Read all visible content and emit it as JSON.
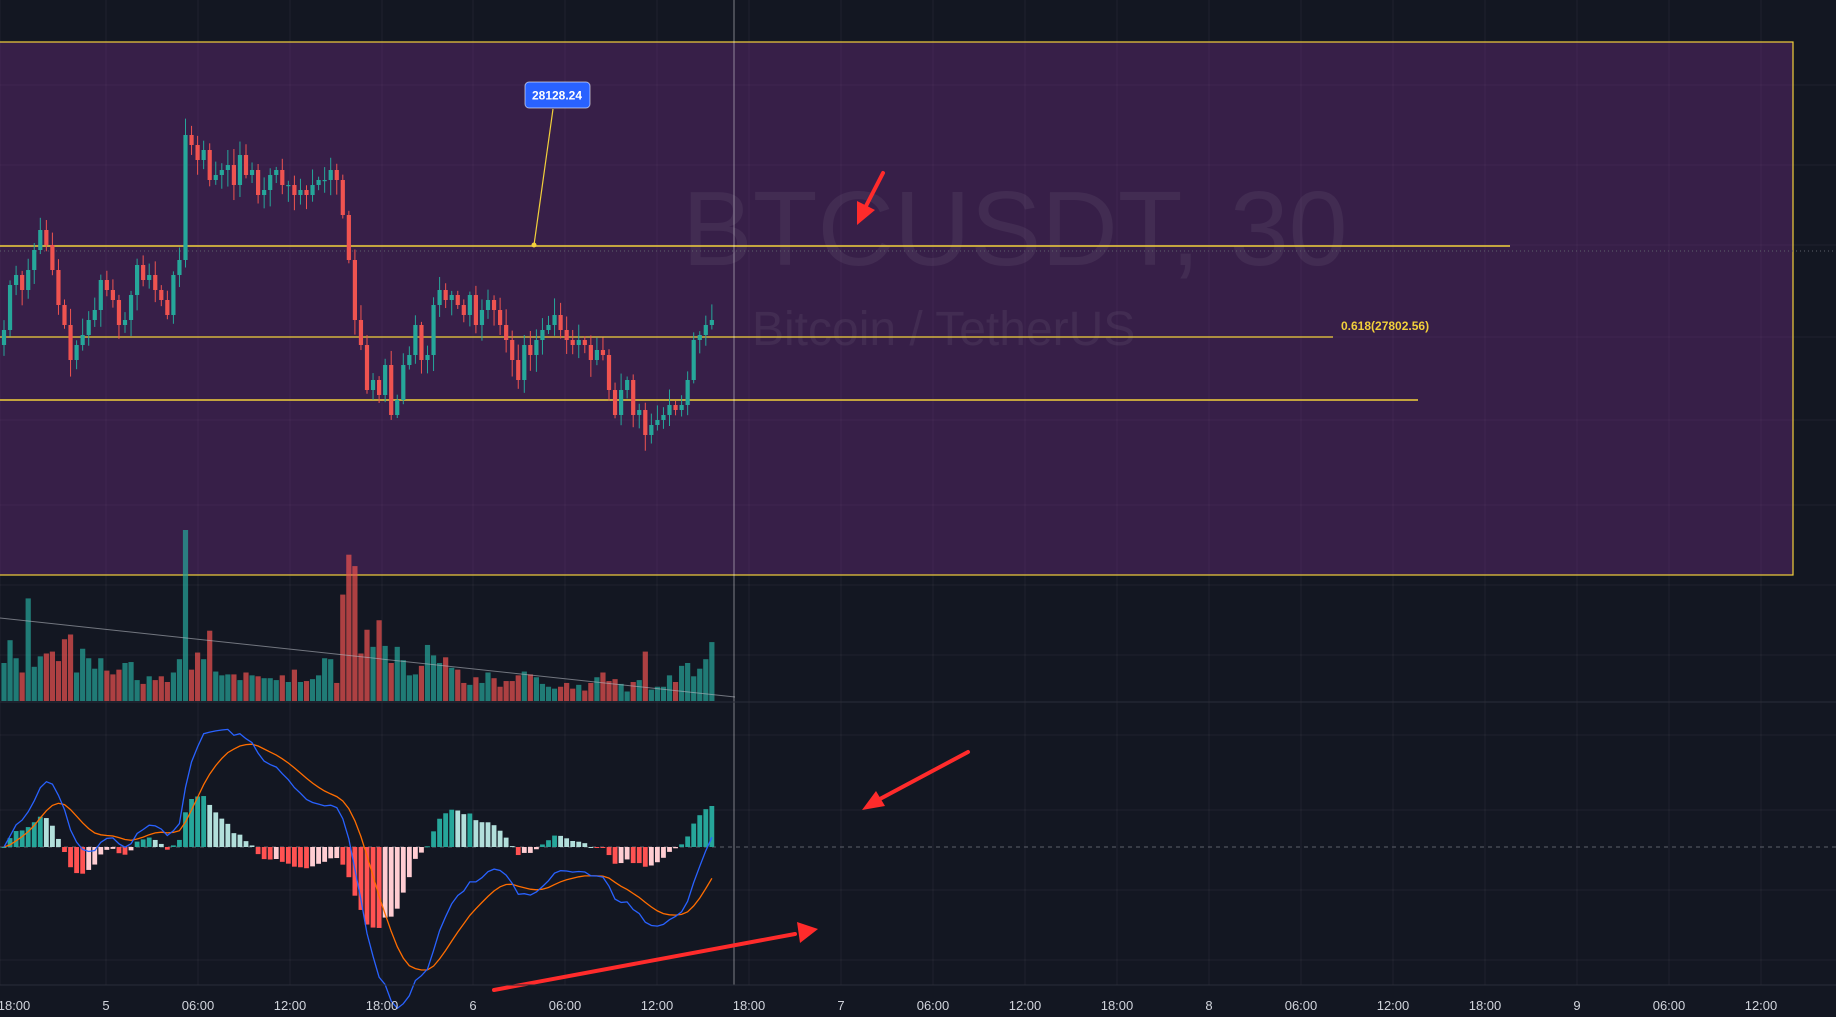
{
  "chart": {
    "symbol_watermark": "BTCUSDT, 30",
    "symbol_description": "Bitcoin / TetherUS",
    "callout_price": "28128.24",
    "fib_label": "0.618(27802.56)"
  },
  "colors": {
    "background": "#131722",
    "up": "#26a69a",
    "down": "#ef5350",
    "zone_fill": "#7b2d8e",
    "zone_border": "#f2d03b",
    "callout_bg": "#2962ff",
    "macd_line": "#2962ff",
    "signal_line": "#ff6d00",
    "hist_up_strong": "#26a69a",
    "hist_up_weak": "#b2dfdb",
    "hist_down_strong": "#ff5252",
    "hist_down_weak": "#ffcdd2",
    "arrow": "#ff2b2b"
  },
  "chart_data": {
    "type": "candlestick",
    "interval_minutes": 30,
    "x_tick_labels": [
      "18:00",
      "5",
      "06:00",
      "12:00",
      "18:00",
      "6",
      "06:00",
      "12:00",
      "18:00",
      "7",
      "06:00",
      "12:00",
      "18:00",
      "8",
      "06:00",
      "12:00",
      "18:00",
      "9",
      "06:00",
      "12:00"
    ],
    "price_axis_range": [
      27300,
      28700
    ],
    "candles_close": [
      28080,
      28170,
      28190,
      28160,
      28200,
      28240,
      28280,
      28250,
      28200,
      28130,
      28090,
      28020,
      28050,
      28070,
      28100,
      28120,
      28180,
      28160,
      28140,
      28090,
      28100,
      28150,
      28210,
      28180,
      28190,
      28160,
      28140,
      28110,
      28190,
      28220,
      28470,
      28450,
      28420,
      28440,
      28380,
      28390,
      28400,
      28410,
      28370,
      28430,
      28390,
      28400,
      28350,
      28360,
      28390,
      28400,
      28370,
      28370,
      28350,
      28360,
      28350,
      28370,
      28380,
      28380,
      28400,
      28380,
      28310,
      28220,
      28100,
      28050,
      27960,
      27980,
      27950,
      28010,
      27910,
      27940,
      28010,
      28030,
      28090,
      28020,
      28030,
      28130,
      28160,
      28140,
      28150,
      28130,
      28110,
      28150,
      28090,
      28120,
      28140,
      28120,
      28090,
      28060,
      28020,
      27980,
      28050,
      28030,
      28060,
      28080,
      28090,
      28110,
      28080,
      28060,
      28050,
      28060,
      28050,
      28020,
      28040,
      28030,
      27960,
      27910,
      27960,
      27980,
      27910,
      27920,
      27870,
      27890,
      27900,
      27910,
      27930,
      27920,
      27930,
      27980,
      28060,
      28070,
      28090,
      28100
    ],
    "volume_series": [
      40,
      64,
      45,
      30,
      108,
      36,
      47,
      50,
      52,
      42,
      65,
      70,
      30,
      55,
      45,
      34,
      45,
      32,
      28,
      33,
      40,
      41,
      22,
      18,
      26,
      22,
      26,
      20,
      30,
      44,
      180,
      33,
      51,
      44,
      74,
      31,
      27,
      28,
      28,
      22,
      30,
      27,
      26,
      24,
      24,
      22,
      27,
      20,
      33,
      20,
      21,
      23,
      27,
      45,
      44,
      19,
      112,
      154,
      142,
      50,
      75,
      57,
      85,
      58,
      40,
      57,
      43,
      27,
      28,
      37,
      59,
      48,
      40,
      46,
      35,
      33,
      19,
      17,
      25,
      19,
      30,
      24,
      15,
      21,
      21,
      27,
      31,
      28,
      25,
      18,
      15,
      13,
      15,
      19,
      13,
      17,
      11,
      19,
      25,
      30,
      21,
      23,
      18,
      10,
      20,
      22,
      52,
      12,
      15,
      15,
      27,
      20,
      37,
      40,
      26,
      34,
      44,
      62
    ]
  }
}
